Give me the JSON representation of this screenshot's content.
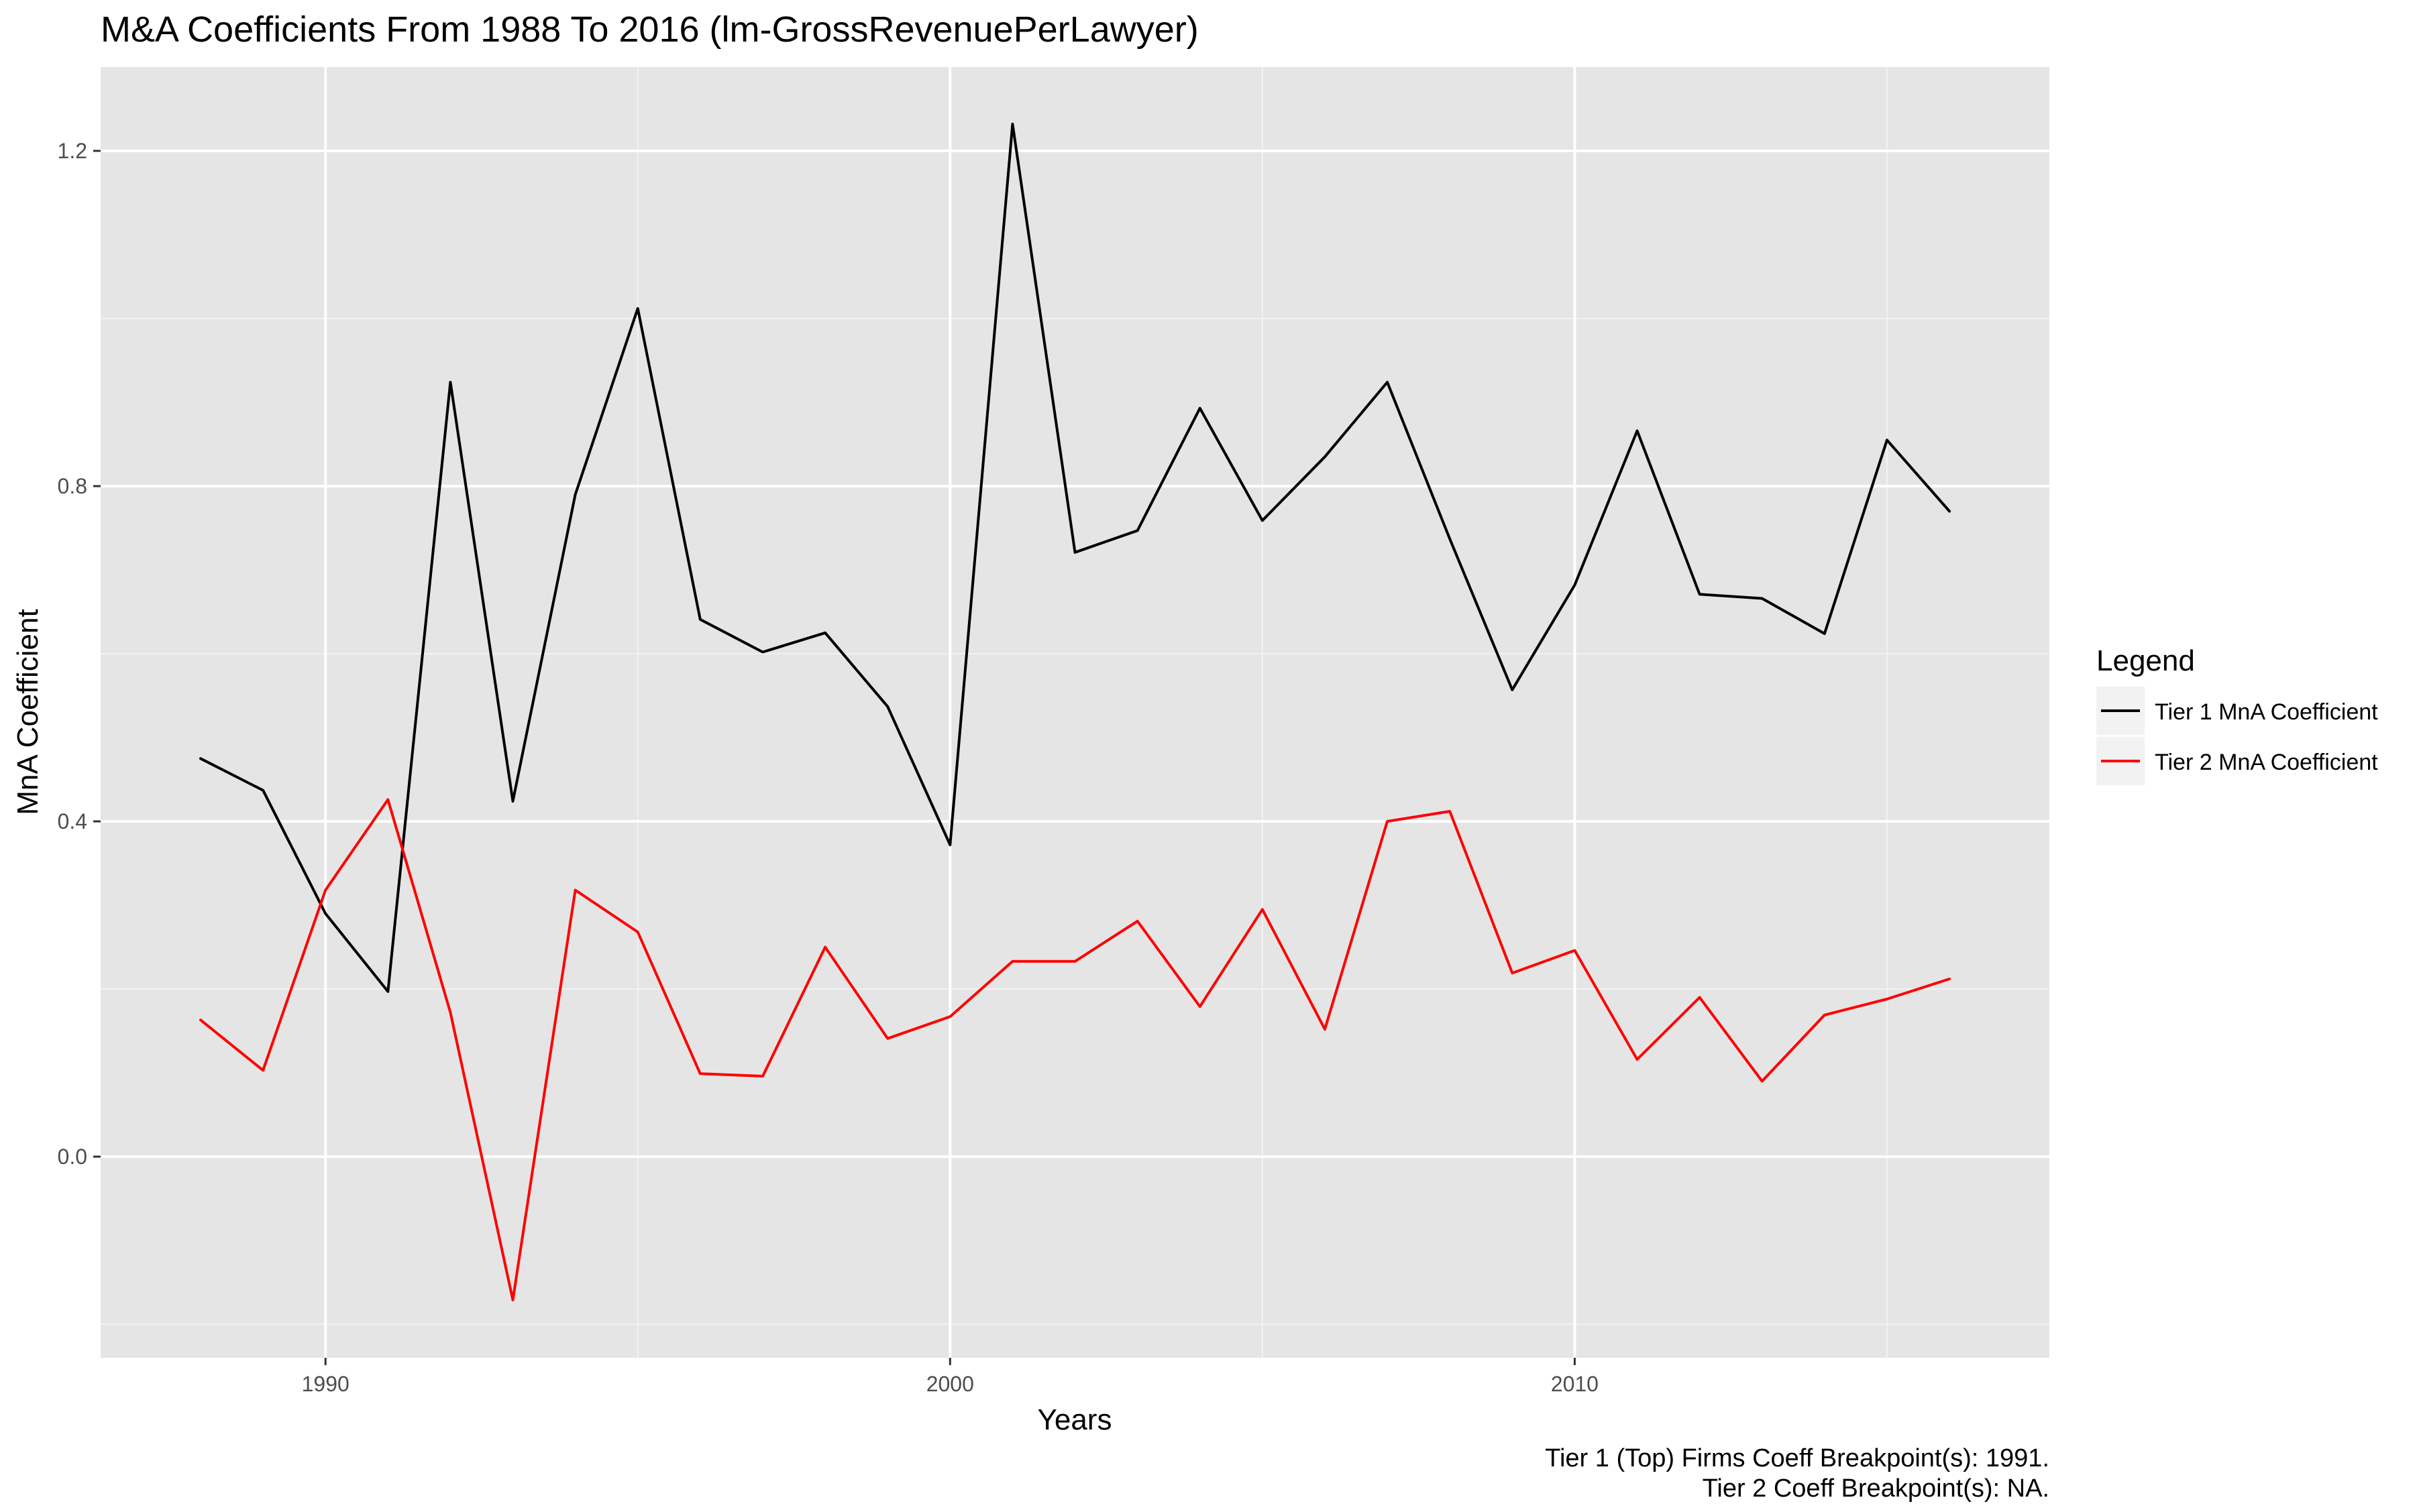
{
  "chart_data": {
    "type": "line",
    "title": "M&A Coefficients From 1988 To 2016 (lm-GrossRevenuePerLawyer)",
    "xlabel": "Years",
    "ylabel": "MnA Coefficient",
    "xlim": [
      1986.4,
      2017.6
    ],
    "ylim": [
      -0.24,
      1.3
    ],
    "x_ticks": [
      1990,
      2000,
      2010
    ],
    "x_minor_ticks": [
      1995,
      2005,
      2015
    ],
    "y_ticks": [
      0.0,
      0.4,
      0.8,
      1.2
    ],
    "y_minor_ticks": [
      -0.2,
      0.2,
      0.6,
      1.0
    ],
    "x_tick_labels": [
      "1990",
      "2000",
      "2010"
    ],
    "y_tick_labels": [
      "0.0",
      "0.4",
      "0.8",
      "1.2"
    ],
    "grid": true,
    "legend": {
      "title": "Legend",
      "position": "right"
    },
    "x": [
      1988,
      1989,
      1990,
      1991,
      1992,
      1993,
      1994,
      1995,
      1996,
      1997,
      1998,
      1999,
      2000,
      2001,
      2002,
      2003,
      2004,
      2005,
      2006,
      2007,
      2008,
      2009,
      2010,
      2011,
      2012,
      2013,
      2014,
      2015,
      2016
    ],
    "series": [
      {
        "name": "Tier 1 MnA Coefficient",
        "color": "#000000",
        "values": [
          0.475,
          0.437,
          0.29,
          0.197,
          0.924,
          0.424,
          0.79,
          1.012,
          0.641,
          0.602,
          0.625,
          0.537,
          0.372,
          1.232,
          0.721,
          0.747,
          0.893,
          0.759,
          0.835,
          0.924,
          0.737,
          0.557,
          0.682,
          0.866,
          0.671,
          0.666,
          0.624,
          0.855,
          0.77
        ]
      },
      {
        "name": "Tier 2 MnA Coefficient",
        "color": "#ff0000",
        "values": [
          0.163,
          0.103,
          0.318,
          0.426,
          0.172,
          -0.171,
          0.318,
          0.268,
          0.099,
          0.096,
          0.25,
          0.141,
          0.167,
          0.233,
          0.233,
          0.281,
          0.179,
          0.295,
          0.152,
          0.4,
          0.412,
          0.219,
          0.246,
          0.116,
          0.19,
          0.09,
          0.169,
          0.188,
          0.212
        ]
      }
    ],
    "annotations": [
      "Tier 1 (Top) Firms Coeff Breakpoint(s): 1991.",
      "Tier 2 Coeff Breakpoint(s): NA."
    ]
  }
}
